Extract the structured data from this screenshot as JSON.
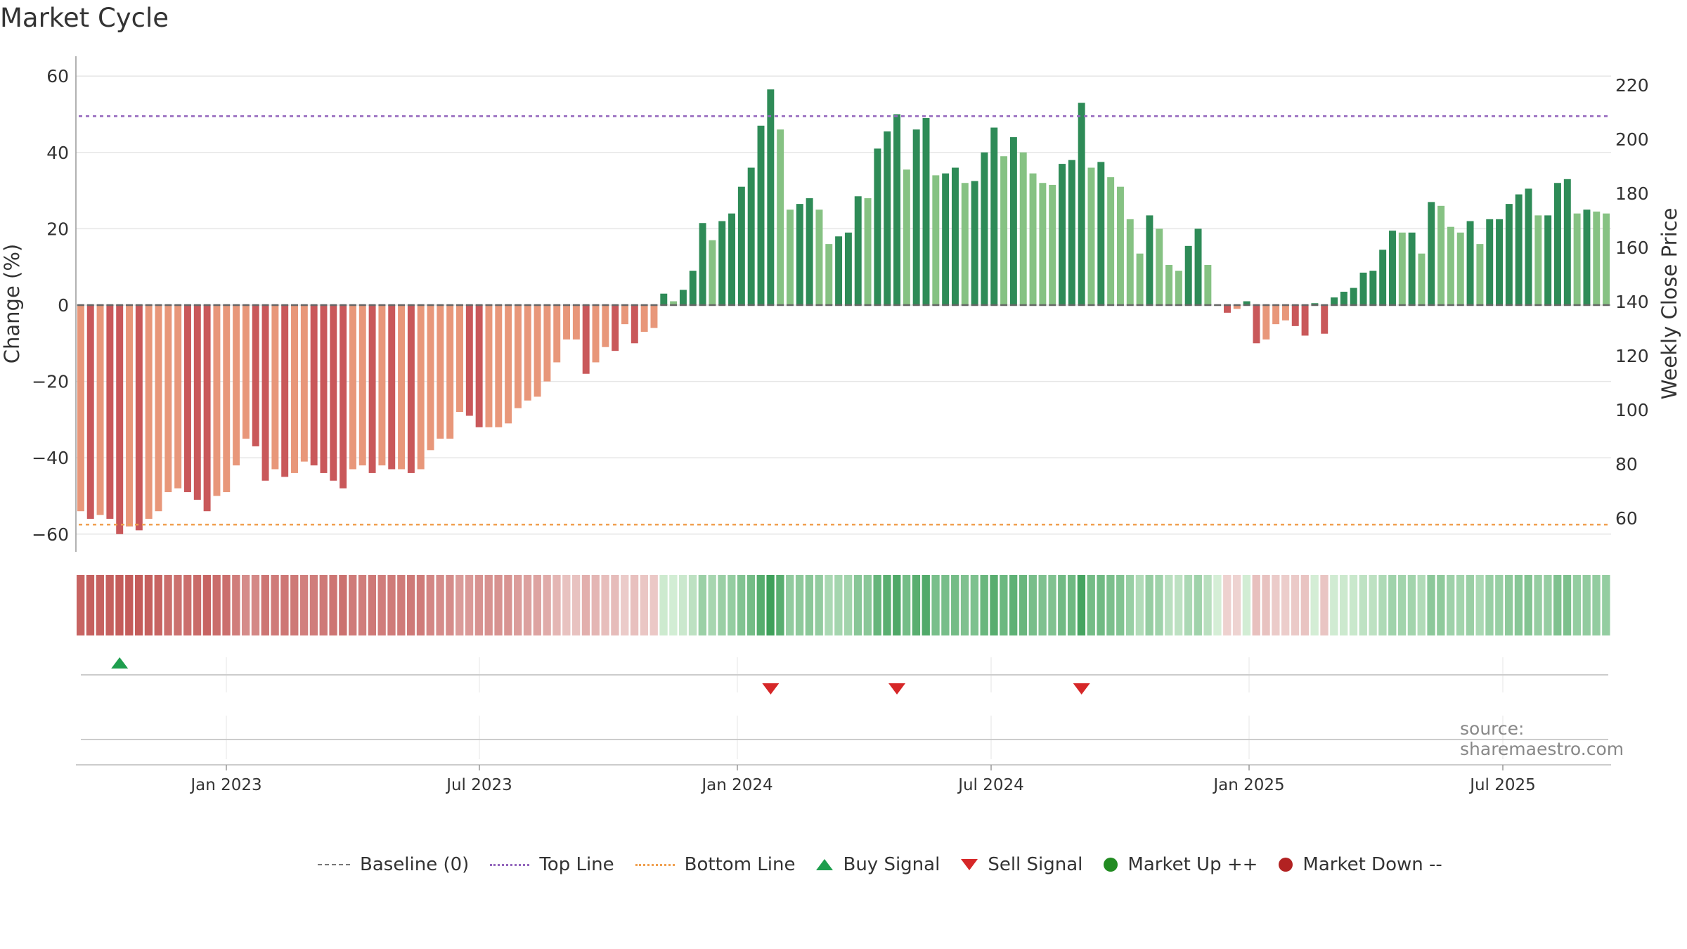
{
  "title": "Market Cycle",
  "source": "source: sharemaestro.com",
  "colors": {
    "bar_neg_dark": "#c9585a",
    "bar_neg_light": "#e8977a",
    "bar_pos_dark": "#2e8b57",
    "bar_pos_light": "#86c283",
    "top_line": "#9467bd",
    "bottom_line": "#f0a050",
    "buy": "#1e9e4e",
    "sell": "#d62728",
    "market_up": "#228b22",
    "market_down": "#b22222"
  },
  "legend": [
    {
      "label": "Baseline (0)",
      "icon": "dash-line-icon"
    },
    {
      "label": "Top Line",
      "icon": "dotted-purple-line-icon"
    },
    {
      "label": "Bottom Line",
      "icon": "dotted-orange-line-icon"
    },
    {
      "label": "Buy Signal",
      "icon": "triangle-up-icon"
    },
    {
      "label": "Sell Signal",
      "icon": "triangle-down-icon"
    },
    {
      "label": "Market Up ++",
      "icon": "green-dot-icon"
    },
    {
      "label": "Market Down --",
      "icon": "red-dot-icon"
    }
  ],
  "chart_data": {
    "type": "bar",
    "title": "Market Cycle",
    "ylabel": "Change (%)",
    "y2label": "Weekly Close Price",
    "ylim": [
      -65,
      65
    ],
    "yticks": [
      -60,
      -40,
      -20,
      0,
      20,
      40,
      60
    ],
    "y2ticks": [
      60,
      80,
      100,
      120,
      140,
      160,
      180,
      200,
      220
    ],
    "xticks": [
      "Jan 2023",
      "Jul 2023",
      "Jan 2024",
      "Jul 2024",
      "Jan 2025",
      "Jul 2025"
    ],
    "top_line": 49.5,
    "bottom_line": -57.5,
    "grid": true,
    "legend_position": "bottom",
    "values": [
      -54,
      -56,
      -55,
      -56,
      -60,
      -58,
      -59,
      -56,
      -54,
      -49,
      -48,
      -49,
      -51,
      -54,
      -50,
      -49,
      -42,
      -35,
      -37,
      -46,
      -43,
      -45,
      -44,
      -41,
      -42,
      -44,
      -46,
      -48,
      -43,
      -42,
      -44,
      -42,
      -43,
      -43,
      -44,
      -43,
      -38,
      -35,
      -35,
      -28,
      -29,
      -32,
      -32,
      -32,
      -31,
      -27,
      -25,
      -24,
      -20,
      -15,
      -9,
      -9,
      -18,
      -15,
      -11,
      -12,
      -5,
      -10,
      -7,
      -6,
      3,
      1,
      4,
      9,
      21.5,
      17,
      22,
      24,
      31,
      36,
      47,
      56.5,
      46,
      25,
      26.5,
      28,
      25,
      16,
      18,
      19,
      28.5,
      28,
      41,
      45.5,
      50,
      35.5,
      46,
      49,
      34,
      34.5,
      36,
      32,
      32.5,
      40,
      46.5,
      39,
      44,
      40,
      34.5,
      32,
      31.5,
      37,
      38,
      53,
      36,
      37.5,
      33.5,
      31,
      22.5,
      13.5,
      23.5,
      20,
      10.5,
      9,
      15.5,
      20,
      10.5,
      0,
      -2,
      -1,
      1,
      -10,
      -9,
      -5,
      -4,
      -5.5,
      -8,
      0.5,
      -7.5,
      2,
      3.5,
      4.5,
      8.5,
      9,
      14.5,
      19.5,
      19,
      19,
      13.5,
      27,
      26,
      20.5,
      19,
      22,
      16,
      22.5,
      22.5,
      26.5,
      29,
      30.5,
      23.5,
      23.5,
      32,
      33,
      24,
      25,
      24.5,
      24
    ],
    "buy_signals": [
      4
    ],
    "sell_signals": [
      71,
      84,
      103
    ]
  }
}
